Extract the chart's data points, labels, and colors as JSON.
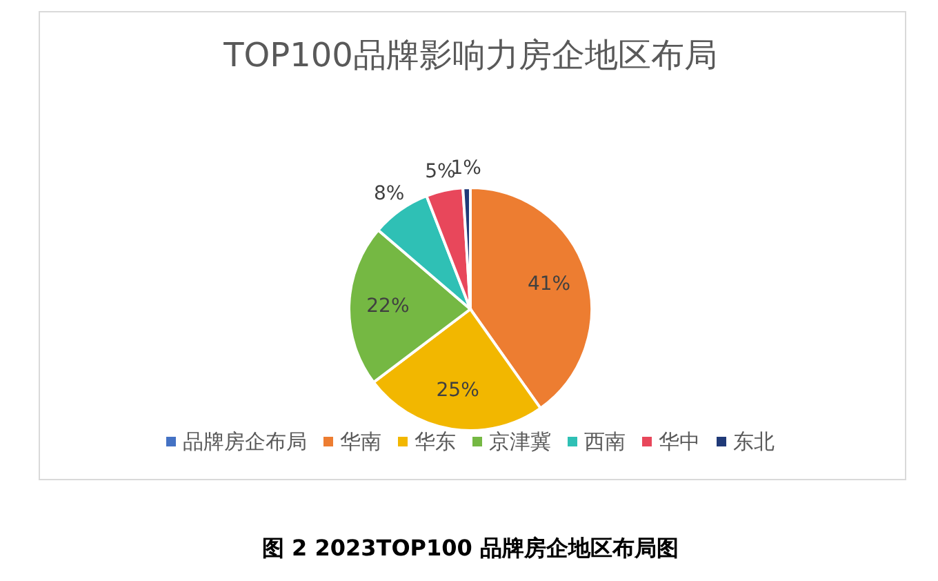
{
  "chart_data": {
    "type": "pie",
    "title": "TOP100品牌影响力房企地区布局",
    "categories": [
      "品牌房企布局",
      "华南",
      "华东",
      "京津冀",
      "西南",
      "华中",
      "东北"
    ],
    "values": [
      0,
      41,
      25,
      22,
      8,
      5,
      1
    ],
    "colors": [
      "#4472c4",
      "#ed7d31",
      "#f2b700",
      "#75b843",
      "#2fc0b5",
      "#e8475b",
      "#203a78"
    ],
    "value_labels": [
      null,
      "41%",
      "25%",
      "22%",
      "8%",
      "5%",
      "1%"
    ],
    "legend": "bottom",
    "annotations": [
      "图 2 2023TOP100 品牌房企地区布局图"
    ]
  }
}
